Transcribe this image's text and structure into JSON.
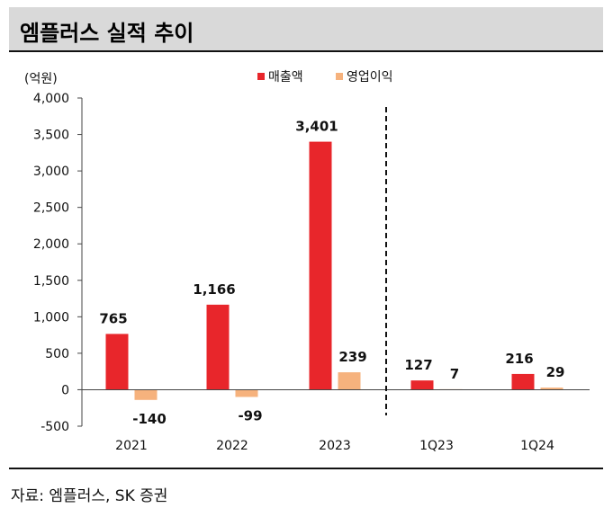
{
  "title": "엠플러스 실적 추이",
  "source": "자료: 엠플러스, SK 증권",
  "chart_data": {
    "type": "bar",
    "unit_label": "(억원)",
    "categories": [
      "2021",
      "2022",
      "2023",
      "1Q23",
      "1Q24"
    ],
    "series": [
      {
        "name": "매출액",
        "color": "#e8262b",
        "values": [
          765,
          1166,
          3401,
          127,
          216
        ]
      },
      {
        "name": "영업이익",
        "color": "#f6b27d",
        "values": [
          -140,
          -99,
          239,
          7,
          29
        ]
      }
    ],
    "data_labels": [
      [
        "765",
        "1,166",
        "3,401",
        "127",
        "216"
      ],
      [
        "-140",
        "-99",
        "239",
        "7",
        "29"
      ]
    ],
    "ylim": [
      -500,
      4000
    ],
    "yticks": [
      -500,
      0,
      500,
      1000,
      1500,
      2000,
      2500,
      3000,
      3500,
      4000
    ],
    "ytick_labels": [
      "-500",
      "0",
      "500",
      "1,000",
      "1,500",
      "2,000",
      "2,500",
      "3,000",
      "3,500",
      "4,000"
    ],
    "divider_after_index": 2,
    "legend_position": "top-center",
    "grid": false
  }
}
